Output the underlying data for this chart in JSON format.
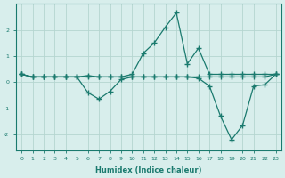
{
  "xlabel": "Humidex (Indice chaleur)",
  "x": [
    0,
    1,
    2,
    3,
    4,
    5,
    6,
    7,
    8,
    9,
    10,
    11,
    12,
    13,
    14,
    15,
    16,
    17,
    18,
    19,
    20,
    21,
    22,
    23
  ],
  "line1": [
    0.3,
    0.2,
    0.2,
    0.2,
    0.2,
    0.2,
    0.25,
    0.2,
    0.2,
    0.2,
    0.3,
    1.1,
    1.5,
    2.1,
    2.65,
    0.7,
    1.3,
    0.3,
    0.3,
    0.3,
    0.3,
    0.3,
    0.3,
    0.3
  ],
  "line2": [
    0.3,
    0.2,
    0.2,
    0.2,
    0.2,
    0.2,
    -0.4,
    -0.65,
    -0.35,
    0.1,
    0.2,
    0.2,
    0.2,
    0.2,
    0.2,
    0.2,
    0.15,
    -0.15,
    -1.3,
    -2.2,
    -1.65,
    -0.15,
    -0.1,
    0.3
  ],
  "line3": [
    0.3,
    0.2,
    0.2,
    0.2,
    0.2,
    0.2,
    0.2,
    0.2,
    0.2,
    0.2,
    0.2,
    0.2,
    0.2,
    0.2,
    0.2,
    0.2,
    0.2,
    0.2,
    0.2,
    0.2,
    0.2,
    0.2,
    0.2,
    0.3
  ],
  "line_color": "#1a7a6e",
  "bg_color": "#d8eeec",
  "grid_color": "#b5d5d0",
  "ylim": [
    -2.6,
    3.0
  ],
  "yticks": [
    -2,
    -1,
    0,
    1,
    2
  ],
  "xlim": [
    -0.5,
    23.5
  ]
}
